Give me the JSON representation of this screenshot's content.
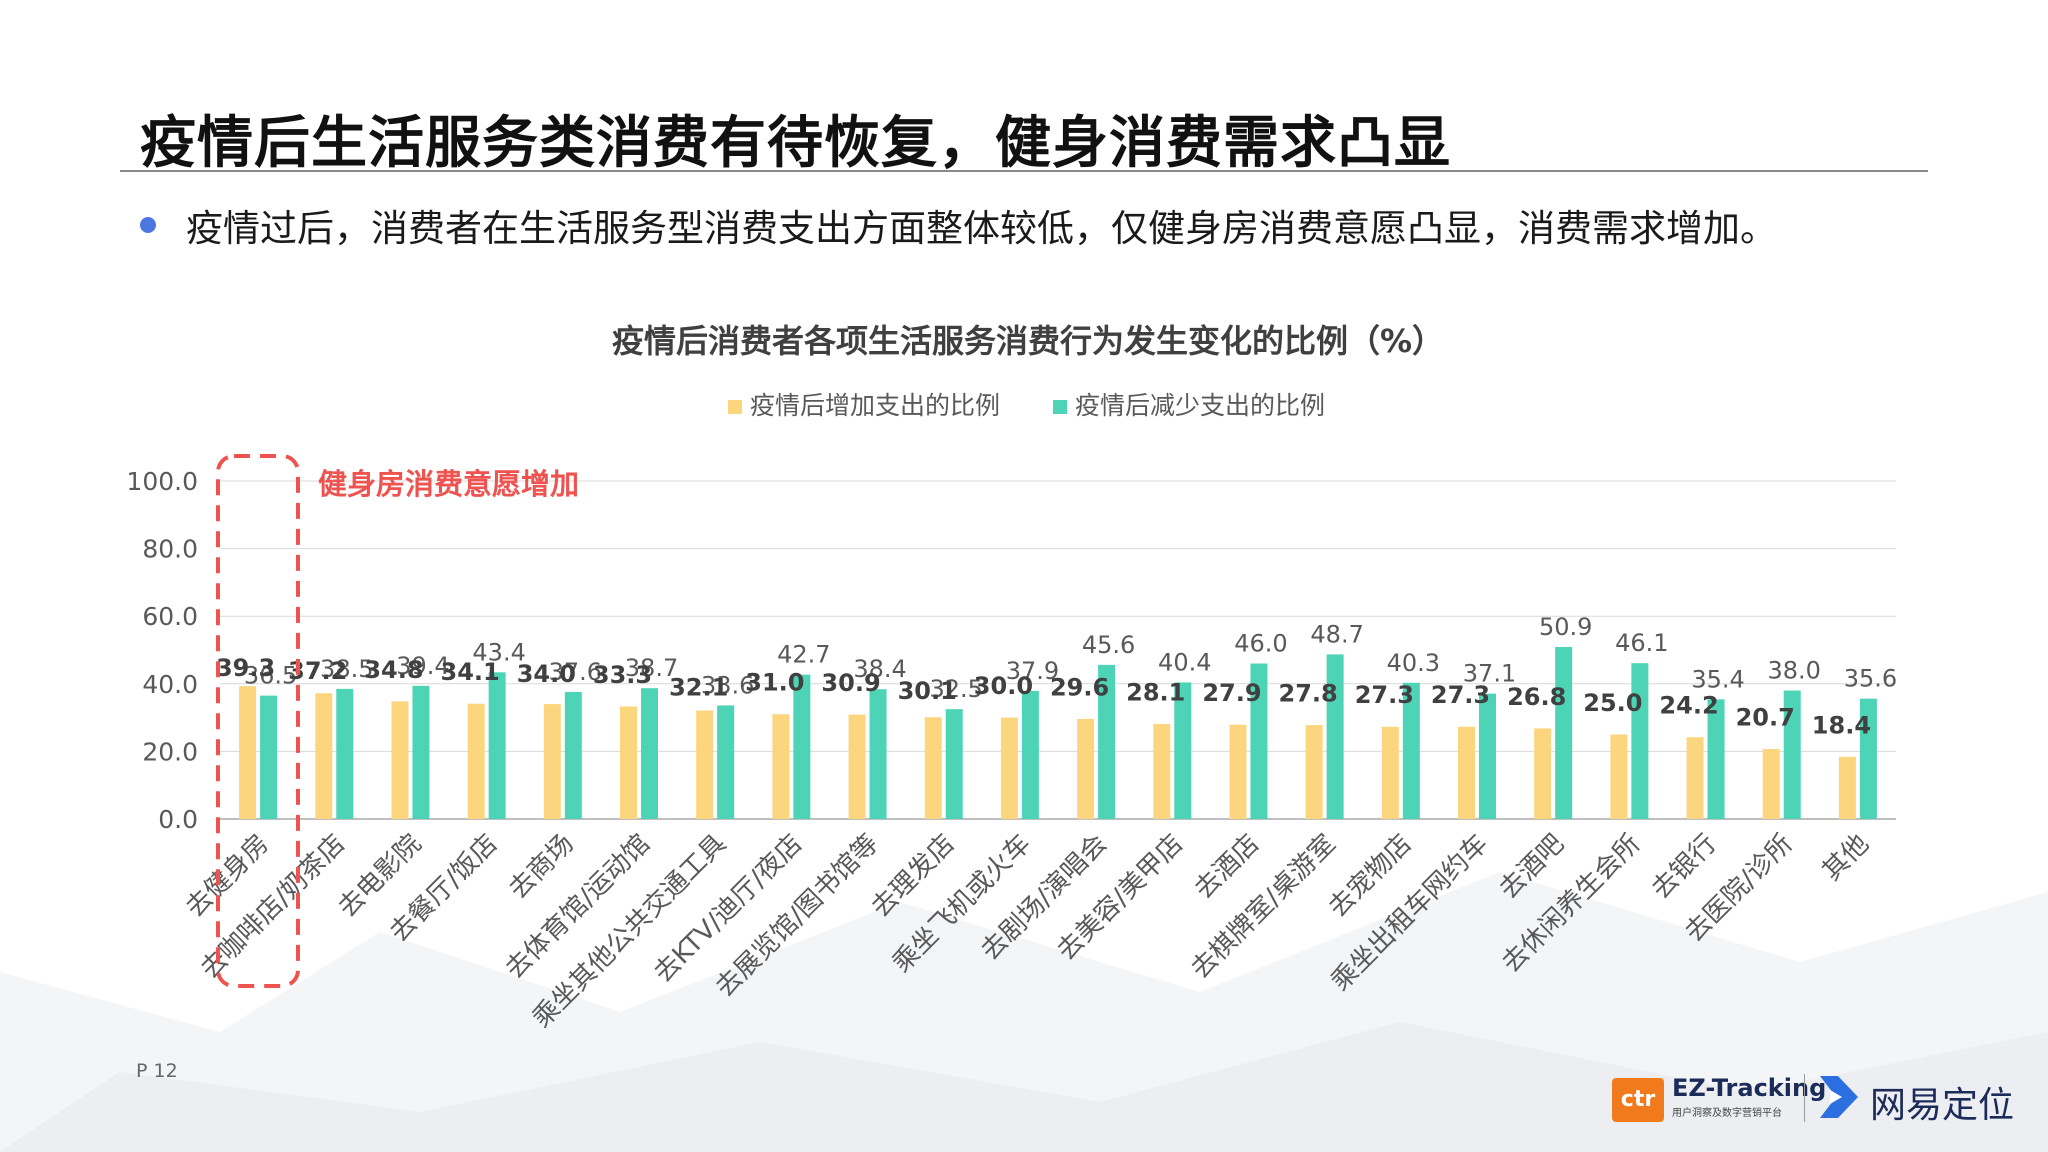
{
  "page": {
    "title": "疫情后生活服务类消费有待恢复，健身消费需求凸显",
    "bullet": "疫情过后，消费者在生活服务型消费支出方面整体较低，仅健身房消费意愿凸显，消费需求增加。",
    "page_number": "P 12"
  },
  "highlight": {
    "label": "健身房消费意愿增加",
    "color": "#ef5350"
  },
  "logos": {
    "ctr": "ctr",
    "ez_tracking": "EZ-Tracking",
    "ez_subtitle": "用户洞察及数字营销平台",
    "netease": "网易定位"
  },
  "colors": {
    "increase": "#fcd67e",
    "decrease": "#4dd4b6",
    "axis_text": "#595959",
    "grid": "#d9d9d9"
  },
  "chart_data": {
    "type": "bar",
    "title": "疫情后消费者各项生活服务消费行为发生变化的比例（%）",
    "xlabel": "",
    "ylabel": "",
    "ylim": [
      0,
      100
    ],
    "yticks": [
      "0.0",
      "20.0",
      "40.0",
      "60.0",
      "80.0",
      "100.0"
    ],
    "legend_position": "top-center",
    "categories": [
      "去健身房",
      "去咖啡店/奶茶店",
      "去电影院",
      "去餐厅/饭店",
      "去商场",
      "去体育馆/运动馆",
      "乘坐其他公共交通工具",
      "去KTV/迪厅/夜店",
      "去展览馆/图书馆等",
      "去理发店",
      "乘坐飞机或火车",
      "去剧场/演唱会",
      "去美容/美甲店",
      "去酒店",
      "去棋牌室/桌游室",
      "去宠物店",
      "乘坐出租车网约车",
      "去酒吧",
      "去休闲养生会所",
      "去银行",
      "去医院/诊所",
      "其他"
    ],
    "series": [
      {
        "name": "疫情后增加支出的比例",
        "values": [
          39.3,
          37.2,
          34.8,
          34.1,
          34.0,
          33.3,
          32.1,
          31.0,
          30.9,
          30.1,
          30.0,
          29.6,
          28.1,
          27.9,
          27.8,
          27.3,
          27.3,
          26.8,
          25.0,
          24.2,
          20.7,
          18.4
        ]
      },
      {
        "name": "疫情后减少支出的比例",
        "values": [
          36.5,
          38.5,
          39.4,
          43.4,
          37.6,
          38.7,
          33.6,
          42.7,
          38.4,
          32.5,
          37.9,
          45.6,
          40.4,
          46.0,
          48.7,
          40.3,
          37.1,
          50.9,
          46.1,
          35.4,
          38.0,
          35.6
        ]
      }
    ]
  }
}
